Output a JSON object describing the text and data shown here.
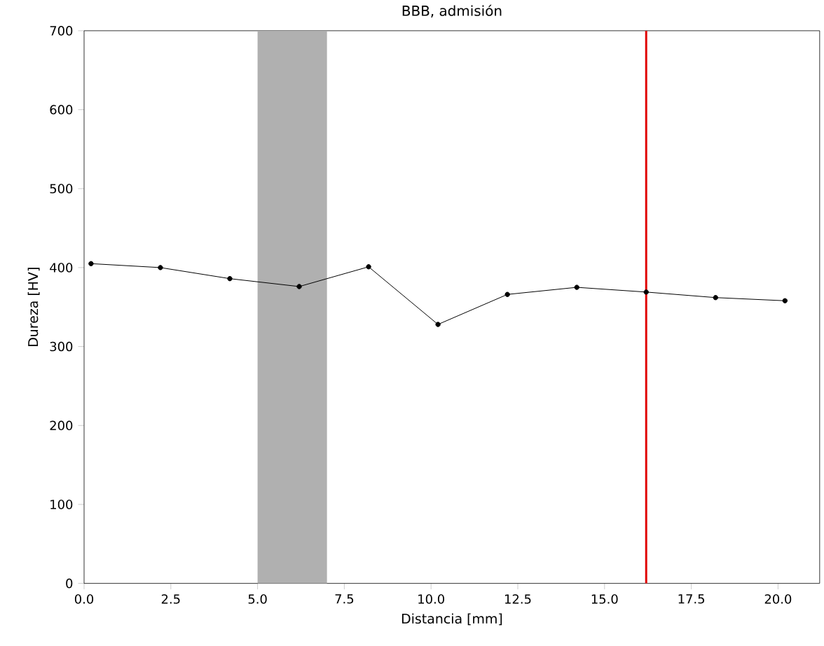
{
  "chart_data": {
    "type": "line",
    "title": "BBB, admisión",
    "xlabel": "Distancia [mm]",
    "ylabel": "Dureza [HV]",
    "x": [
      0.2,
      2.2,
      4.2,
      6.2,
      8.2,
      10.2,
      12.2,
      14.2,
      16.2,
      18.2,
      20.2
    ],
    "series": [
      {
        "color": "#000000",
        "values": [
          405,
          400,
          386,
          376,
          401,
          328,
          366,
          375,
          369,
          362,
          358
        ]
      }
    ],
    "marker": "circle",
    "line_style": "solid",
    "xlim": [
      0,
      21.2
    ],
    "ylim": [
      0,
      700
    ],
    "xticks": [
      {
        "value": 0,
        "label": "0.0"
      },
      {
        "value": 2.5,
        "label": "2.5"
      },
      {
        "value": 5,
        "label": "5.0"
      },
      {
        "value": 7.5,
        "label": "7.5"
      },
      {
        "value": 10,
        "label": "10.0"
      },
      {
        "value": 12.5,
        "label": "12.5"
      },
      {
        "value": 15,
        "label": "15.0"
      },
      {
        "value": 17.5,
        "label": "17.5"
      },
      {
        "value": 20,
        "label": "20.0"
      }
    ],
    "yticks": [
      0,
      100,
      200,
      300,
      400,
      500,
      600,
      700
    ],
    "ref_lines": [
      {
        "axis": "x",
        "value": 16.2,
        "color": "#e00000"
      }
    ],
    "bands": [
      {
        "axis": "x",
        "from": 5,
        "to": 7,
        "color": "#b0b0b0"
      }
    ]
  }
}
